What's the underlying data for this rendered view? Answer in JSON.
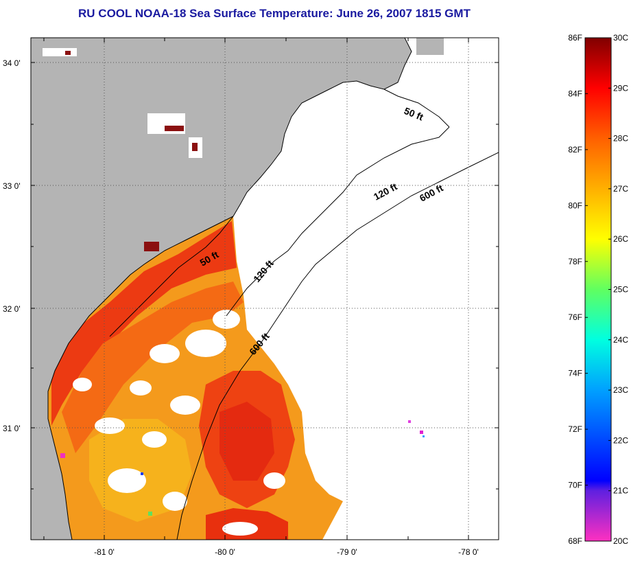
{
  "title": "RU COOL  NOAA-18  Sea Surface Temperature:  June 26, 2007 1815 GMT",
  "map": {
    "lat_labels": [
      "34 0'",
      "33 0'",
      "32 0'",
      "31 0'"
    ],
    "lon_labels": [
      "-81 0'",
      "-80 0'",
      "-79 0'",
      "-78 0'"
    ],
    "depth_contours": [
      "50 ft",
      "120 ft",
      "600 ft",
      "50 ft",
      "120 ft",
      "600 ft"
    ],
    "colors": {
      "land": "#b4b4b4",
      "ocean_nodata": "#ffffff",
      "coast": "#000000"
    }
  },
  "colorbar": {
    "fahrenheit_labels": [
      "86F",
      "84F",
      "82F",
      "80F",
      "78F",
      "76F",
      "74F",
      "72F",
      "70F",
      "68F"
    ],
    "celsius_labels": [
      "30C",
      "29C",
      "28C",
      "27C",
      "26C",
      "25C",
      "24C",
      "23C",
      "22C",
      "21C",
      "20C"
    ],
    "celsius_range": [
      20,
      30
    ]
  }
}
